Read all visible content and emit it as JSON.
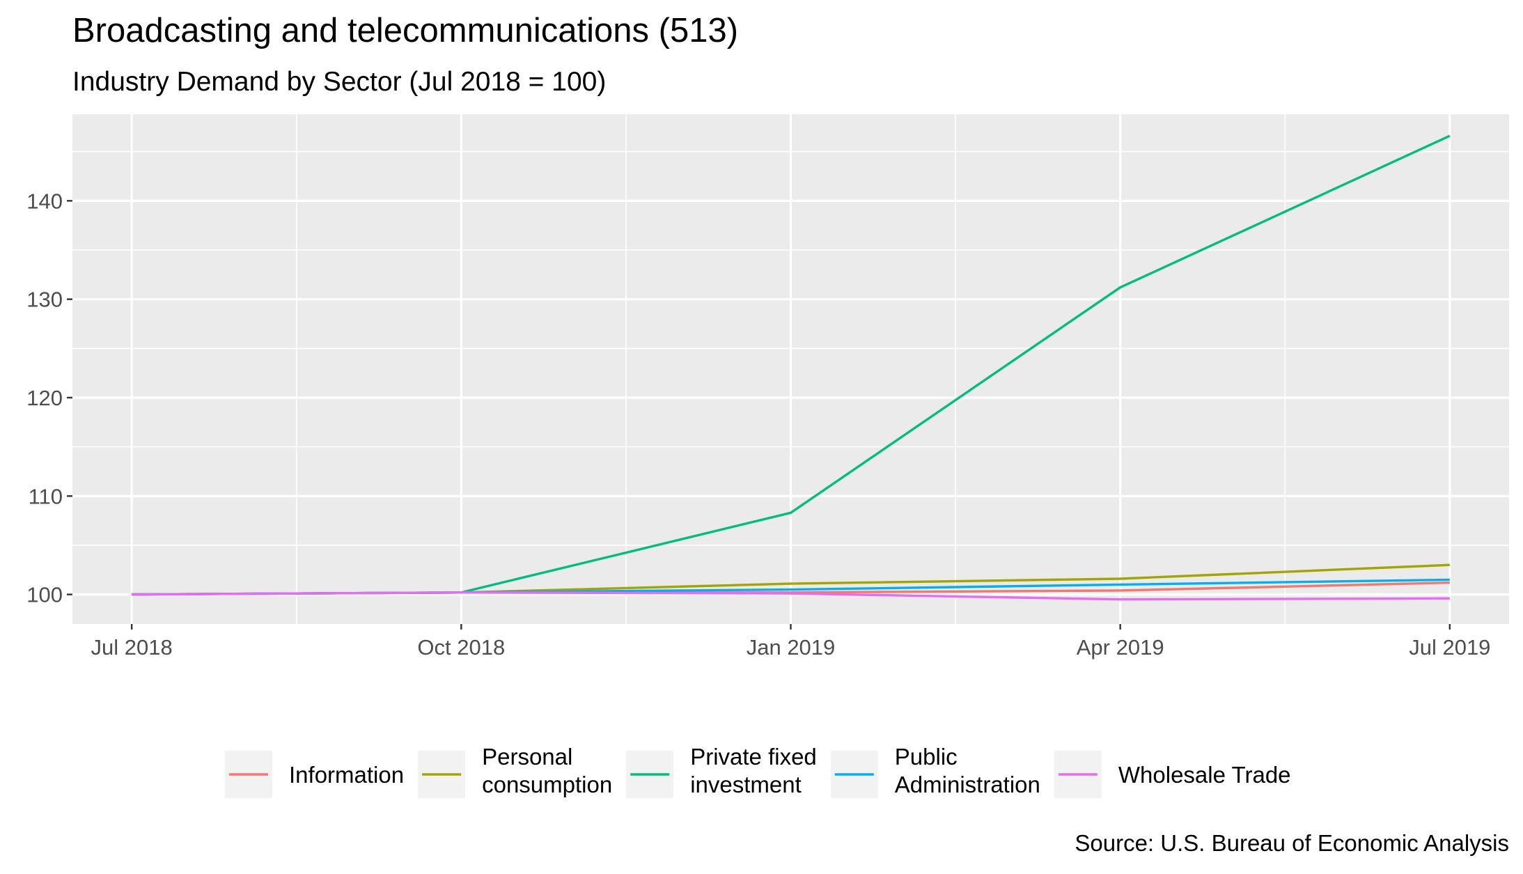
{
  "chart_data": {
    "type": "line",
    "title": "Broadcasting and telecommunications (513)",
    "subtitle": "Industry Demand by Sector (Jul 2018 = 100)",
    "caption": "Source: U.S. Bureau of Economic Analysis",
    "xlabel": "",
    "ylabel": "",
    "x": [
      "2018-07",
      "2018-10",
      "2019-01",
      "2019-04",
      "2019-07"
    ],
    "x_tick_labels": [
      "Jul 2018",
      "Oct 2018",
      "Jan 2019",
      "Apr 2019",
      "Jul 2019"
    ],
    "y_ticks": [
      100,
      110,
      120,
      130,
      140
    ],
    "y_tick_labels": [
      "100",
      "110",
      "120",
      "130",
      "140"
    ],
    "ylim": [
      97,
      148.8
    ],
    "grid": true,
    "legend_position": "bottom",
    "series": [
      {
        "name": "Information",
        "color": "#F8766D",
        "values": [
          100,
          100.2,
          100.2,
          100.4,
          101.2
        ]
      },
      {
        "name": "Personal consumption",
        "color": "#A3A500",
        "values": [
          100,
          100.2,
          101.1,
          101.6,
          103.0
        ]
      },
      {
        "name": "Private fixed investment",
        "color": "#00BF7D",
        "values": [
          100,
          100.2,
          108.3,
          131.2,
          146.6
        ]
      },
      {
        "name": "Public Administration",
        "color": "#00B0F6",
        "values": [
          100,
          100.2,
          100.5,
          101.0,
          101.5
        ]
      },
      {
        "name": "Wholesale Trade",
        "color": "#E76BF3",
        "values": [
          100,
          100.2,
          100.1,
          99.5,
          99.6
        ]
      }
    ],
    "legend_labels": [
      [
        "Information"
      ],
      [
        "Personal",
        "consumption"
      ],
      [
        "Private fixed",
        "investment"
      ],
      [
        "Public",
        "Administration"
      ],
      [
        "Wholesale Trade"
      ]
    ]
  }
}
